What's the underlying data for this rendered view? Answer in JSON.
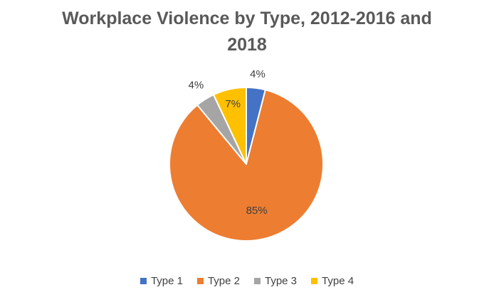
{
  "chart_data": {
    "type": "pie",
    "title": "Workplace Violence by Type, 2012-2016 and 2018",
    "categories": [
      "Type 1",
      "Type 2",
      "Type 3",
      "Type 4"
    ],
    "values": [
      4,
      85,
      4,
      7
    ],
    "data_labels": [
      "4%",
      "85%",
      "4%",
      "7%"
    ],
    "colors": [
      "#4472C4",
      "#ED7D31",
      "#A5A5A5",
      "#FFC000"
    ],
    "start_angle": "12 o'clock",
    "direction": "clockwise",
    "legend": "bottom"
  }
}
